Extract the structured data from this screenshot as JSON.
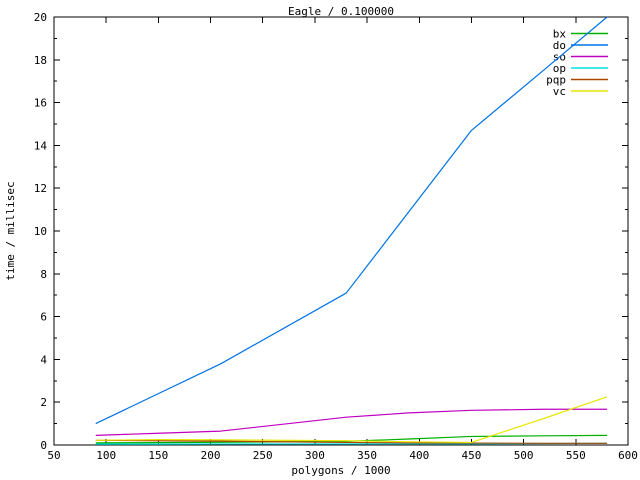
{
  "chart_data": {
    "type": "line",
    "title": "Eagle / 0.100000",
    "xlabel": "polygons / 1000",
    "ylabel": "time / millisec",
    "xlim": [
      50,
      600
    ],
    "ylim": [
      0,
      20
    ],
    "xticks": [
      50,
      100,
      150,
      200,
      250,
      300,
      350,
      400,
      450,
      500,
      550,
      600
    ],
    "yticks": [
      0,
      2,
      4,
      6,
      8,
      10,
      12,
      14,
      16,
      18,
      20
    ],
    "y_minor_ticks": [
      1,
      3,
      5,
      7,
      9,
      11,
      13,
      15,
      17,
      19
    ],
    "grid": false,
    "legend_position": "top-right-inside",
    "x": [
      90,
      150,
      210,
      330,
      390,
      450,
      520,
      580
    ],
    "series": [
      {
        "name": "bx",
        "color": "#00b000",
        "values": [
          0.1,
          0.11,
          0.13,
          0.17,
          0.28,
          0.4,
          0.43,
          0.45
        ]
      },
      {
        "name": "do",
        "color": "#0072e6",
        "values": [
          1.0,
          2.4,
          3.8,
          7.1,
          10.9,
          14.7,
          17.55,
          20.0
        ]
      },
      {
        "name": "so",
        "color": "#c000c0",
        "values": [
          0.45,
          0.55,
          0.65,
          1.3,
          1.5,
          1.62,
          1.67,
          1.67
        ]
      },
      {
        "name": "op",
        "color": "#00e0e0",
        "values": [
          0.04,
          0.04,
          0.05,
          0.05,
          0.06,
          0.06,
          0.07,
          0.08
        ]
      },
      {
        "name": "pqp",
        "color": "#aa4400",
        "values": [
          0.22,
          0.2,
          0.18,
          0.12,
          0.1,
          0.09,
          0.08,
          0.08
        ]
      },
      {
        "name": "vc",
        "color": "#e6e600",
        "values": [
          0.22,
          0.25,
          0.24,
          0.2,
          0.15,
          0.12,
          1.25,
          2.25
        ]
      }
    ],
    "axis_color": "#000000"
  }
}
